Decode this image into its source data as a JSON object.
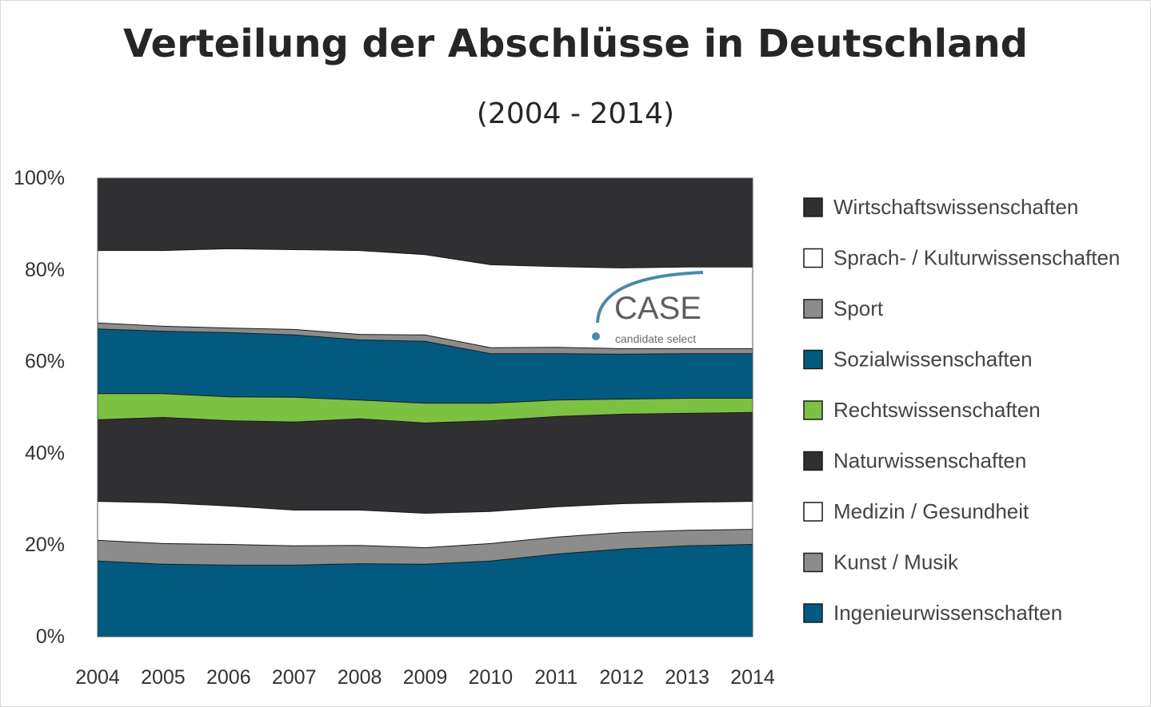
{
  "chart_data": {
    "type": "area",
    "stacked": true,
    "title": "Verteilung der Abschlüsse in Deutschland",
    "subtitle": "(2004 - 2014)",
    "xlabel": "",
    "ylabel": "",
    "ylim": [
      0,
      100
    ],
    "y_ticks": [
      "0%",
      "20%",
      "40%",
      "60%",
      "80%",
      "100%"
    ],
    "categories": [
      "2004",
      "2005",
      "2006",
      "2007",
      "2008",
      "2009",
      "2010",
      "2011",
      "2012",
      "2013",
      "2014"
    ],
    "legend_position": "right",
    "grid": false,
    "series": [
      {
        "name": "Ingenieurwissenschaften",
        "color": "#035a80",
        "values": [
          16.6,
          15.9,
          15.7,
          15.7,
          16.0,
          15.9,
          16.6,
          18.1,
          19.2,
          19.9,
          20.2
        ]
      },
      {
        "name": "Kunst / Musik",
        "color": "#8c8c8c",
        "values": [
          4.5,
          4.5,
          4.5,
          4.2,
          4.0,
          3.6,
          3.8,
          3.7,
          3.6,
          3.4,
          3.3
        ]
      },
      {
        "name": "Medizin / Gesundheit",
        "color": "#ffffff",
        "values": [
          8.5,
          8.9,
          8.4,
          7.8,
          7.7,
          7.5,
          7.0,
          6.6,
          6.3,
          6.1,
          6.1
        ]
      },
      {
        "name": "Naturwissenschaften",
        "color": "#303033",
        "values": [
          17.8,
          18.6,
          18.6,
          19.2,
          19.9,
          19.7,
          19.8,
          19.7,
          19.5,
          19.4,
          19.4
        ]
      },
      {
        "name": "Rechtswissenschaften",
        "color": "#7dc142",
        "values": [
          5.7,
          5.2,
          5.2,
          5.4,
          4.1,
          4.3,
          3.8,
          3.6,
          3.3,
          3.3,
          3.1
        ]
      },
      {
        "name": "Sozialwissenschaften",
        "color": "#035a80",
        "values": [
          14.1,
          13.6,
          14.0,
          13.6,
          13.1,
          13.5,
          10.8,
          10.1,
          9.8,
          9.7,
          9.7
        ]
      },
      {
        "name": "Sport",
        "color": "#8c8c8c",
        "values": [
          1.3,
          1.1,
          1.0,
          1.2,
          1.2,
          1.4,
          1.3,
          1.4,
          1.2,
          1.1,
          1.1
        ]
      },
      {
        "name": "Sprach- / Kulturwissenschaften",
        "color": "#ffffff",
        "values": [
          15.8,
          16.5,
          17.3,
          17.4,
          18.3,
          17.5,
          18.1,
          17.6,
          17.6,
          17.8,
          17.8
        ]
      },
      {
        "name": "Wirtschaftswissenschaften",
        "color": "#303033",
        "values": [
          15.7,
          15.7,
          15.3,
          15.5,
          15.7,
          16.6,
          18.8,
          19.2,
          19.5,
          19.3,
          19.3
        ]
      }
    ]
  },
  "watermark": {
    "logo_text": "CASE",
    "tagline": "candidate select",
    "accent": "#4a8aab"
  }
}
